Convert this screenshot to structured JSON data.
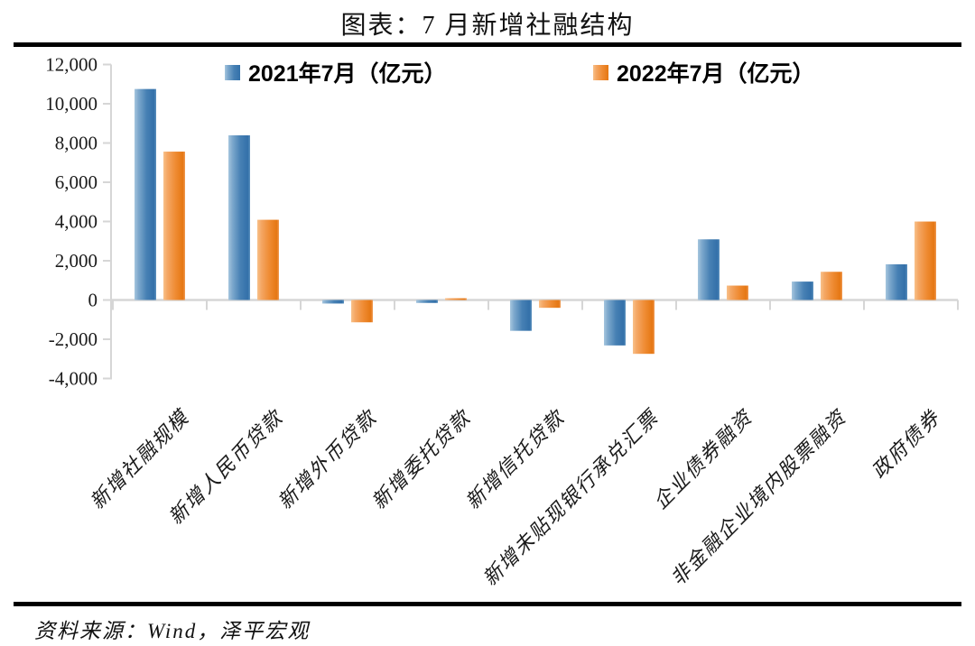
{
  "page": {
    "title": "图表：7 月新增社融结构",
    "source_label": "资料来源：Wind，泽平宏观"
  },
  "colors": {
    "series_2021_blue": "#4781B4",
    "series_2022_orange": "#EF8C34",
    "blue_gradient": [
      "#A6C6DE",
      "#7EA9CD",
      "#4781B4",
      "#3370A9",
      "#5E92BE"
    ],
    "orange_gradient": [
      "#F8C18A",
      "#F4A765",
      "#EF8C34",
      "#E57713",
      "#F09B55"
    ],
    "axis_gray": "#D6D6D6",
    "text_black": "#111111"
  },
  "chart_data": {
    "type": "bar",
    "title": "图表：7 月新增社融结构",
    "categories": [
      "新增社融规模",
      "新增人民币贷款",
      "新增外币贷款",
      "新增委托贷款",
      "新增信托贷款",
      "新增未贴现银行承兑汇票",
      "企业债券融资",
      "非金融企业境内股票融资",
      "政府债券"
    ],
    "series": [
      {
        "name": "2021年7月（亿元）",
        "color": "#4781B4",
        "values": [
          10752,
          8391,
          -181,
          -151,
          -1571,
          -2316,
          3091,
          938,
          1820
        ]
      },
      {
        "name": "2022年7月（亿元）",
        "color": "#EF8C34",
        "values": [
          7561,
          4088,
          -1137,
          89,
          -398,
          -2744,
          734,
          1437,
          3998
        ]
      }
    ],
    "ylim": [
      -4000,
      12000
    ],
    "ytick_step": 2000,
    "ytick_labels": [
      "12,000",
      "10,000",
      "8,000",
      "6,000",
      "4,000",
      "2,000",
      "0",
      "-2,000",
      "-4,000"
    ],
    "xlabel": "",
    "ylabel": "",
    "grid": "off",
    "legend_position": "top"
  }
}
